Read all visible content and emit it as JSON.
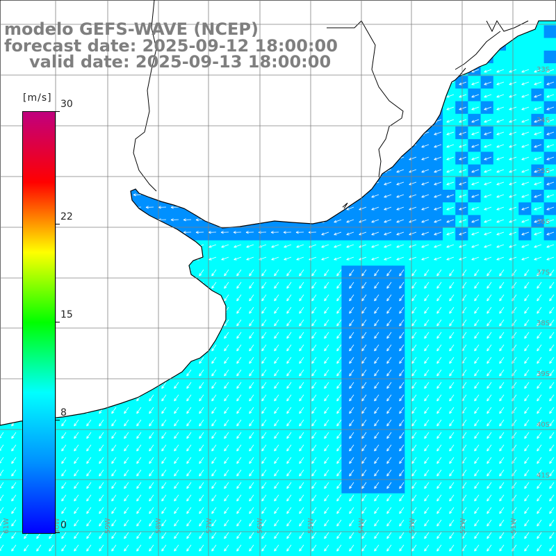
{
  "title": {
    "line1": "modelo GEFS-WAVE (NCEP)",
    "line2": "forecast date: 2025-09-12 18:00:00",
    "line3": "valid date: 2025-09-13 18:00:00"
  },
  "colorbar": {
    "units": "[m/s]",
    "ticks": [
      "0",
      "8",
      "15",
      "22",
      "30"
    ],
    "min": 0,
    "max": 30,
    "colors": [
      "#0000ff",
      "#0090ff",
      "#00ffff",
      "#00ff00",
      "#ffff00",
      "#ff0000",
      "#c0007f"
    ]
  },
  "map": {
    "land_color": "#ffffff",
    "grid_color": "#7f7f7f",
    "coast_color": "#000000",
    "arrow_color": "#ffffff",
    "lat_labels": [
      "33S",
      "34S",
      "35S",
      "36S",
      "37S",
      "38S",
      "39S",
      "40S",
      "41S"
    ],
    "lon_labels": [
      "61W",
      "60W",
      "59W",
      "58W",
      "57W",
      "56W",
      "55W",
      "54W",
      "53W",
      "52W",
      "51W"
    ]
  }
}
